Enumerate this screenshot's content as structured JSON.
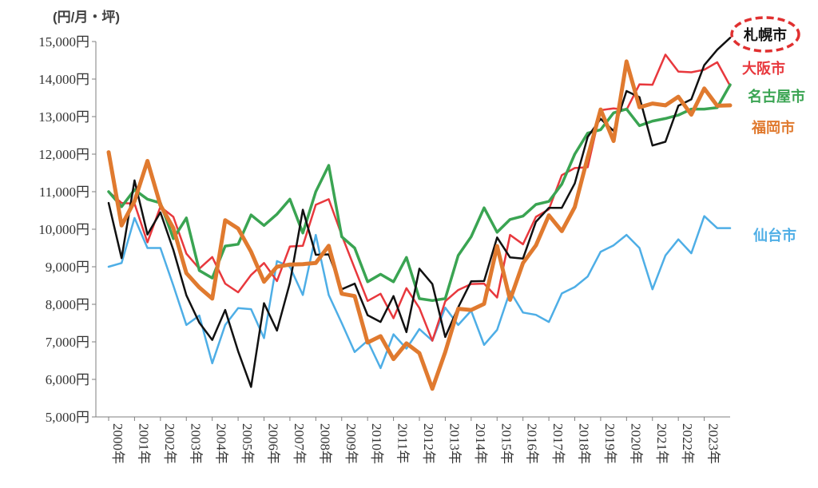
{
  "chart_data": {
    "type": "line",
    "unit_label": "(円/月・坪)",
    "y_ticks": [
      "5,000円",
      "6,000円",
      "7,000円",
      "8,000円",
      "9,000円",
      "10,000円",
      "11,000円",
      "12,000円",
      "13,000円",
      "14,000円",
      "15,000円"
    ],
    "ylim": [
      5000,
      15000
    ],
    "x_range": [
      2000,
      2024
    ],
    "x_ticks": [
      "2000年",
      "2001年",
      "2002年",
      "2003年",
      "2004年",
      "2005年",
      "2006年",
      "2007年",
      "2008年",
      "2009年",
      "2010年",
      "2011年",
      "2012年",
      "2013年",
      "2014年",
      "2015年",
      "2016年",
      "2017年",
      "2018年",
      "2019年",
      "2020年",
      "2021年",
      "2022年",
      "2023年"
    ],
    "grid": false,
    "highlight_series": "札幌市",
    "series": [
      {
        "name": "仙台市",
        "color": "#4eaee6",
        "width": 2.5,
        "label_color": "#4eaee6",
        "x": [
          2000,
          2000.5,
          2001,
          2001.5,
          2002,
          2002.5,
          2003,
          2003.5,
          2004,
          2004.5,
          2005,
          2005.5,
          2006,
          2006.5,
          2007,
          2007.5,
          2008,
          2008.5,
          2009,
          2009.5,
          2010,
          2010.5,
          2011,
          2011.5,
          2012,
          2012.5,
          2013,
          2013.5,
          2014,
          2014.5,
          2015,
          2015.5,
          2016,
          2016.5,
          2017,
          2017.5,
          2018,
          2018.5,
          2019,
          2019.5,
          2020,
          2020.5,
          2021,
          2021.5,
          2022,
          2022.5,
          2023,
          2023.5,
          2024
        ],
        "y": [
          9000,
          9100,
          10300,
          9500,
          9500,
          8500,
          7450,
          7700,
          6430,
          7450,
          7900,
          7870,
          7100,
          9150,
          9000,
          8250,
          9850,
          8250,
          7500,
          6730,
          7030,
          6300,
          7200,
          6820,
          7340,
          7030,
          7910,
          7450,
          7830,
          6920,
          7320,
          8350,
          7780,
          7720,
          7530,
          8290,
          8460,
          8740,
          9400,
          9570,
          9850,
          9500,
          8400,
          9300,
          9730,
          9360,
          10350,
          10030,
          10030
        ]
      },
      {
        "name": "大阪市",
        "color": "#e8383d",
        "width": 2.5,
        "label_color": "#e8383d",
        "x": [
          2000,
          2000.5,
          2001,
          2001.5,
          2002,
          2002.5,
          2003,
          2003.5,
          2004,
          2004.5,
          2005,
          2005.5,
          2006,
          2006.5,
          2007,
          2007.5,
          2008,
          2008.5,
          2009,
          2009.5,
          2010,
          2010.5,
          2011,
          2011.5,
          2012,
          2012.5,
          2013,
          2013.5,
          2014,
          2014.5,
          2015,
          2015.5,
          2016,
          2016.5,
          2017,
          2017.5,
          2018,
          2018.5,
          2019,
          2019.5,
          2020,
          2020.5,
          2021,
          2021.5,
          2022,
          2022.5,
          2023,
          2023.5,
          2024
        ],
        "y": [
          11000,
          10700,
          10680,
          9650,
          10600,
          10330,
          9350,
          8950,
          9260,
          8550,
          8320,
          8780,
          9100,
          8620,
          9540,
          9560,
          10650,
          10800,
          9840,
          8960,
          8090,
          8280,
          7630,
          8430,
          7900,
          7030,
          8080,
          8380,
          8540,
          8550,
          8180,
          9850,
          9600,
          10330,
          10530,
          11440,
          11630,
          11650,
          13170,
          13220,
          13180,
          13860,
          13850,
          14650,
          14200,
          14180,
          14250,
          14450,
          13820
        ]
      },
      {
        "name": "名古屋市",
        "color": "#3aa452",
        "width": 3.5,
        "label_color": "#3aa452",
        "x": [
          2000,
          2000.5,
          2001,
          2001.5,
          2002,
          2002.5,
          2003,
          2003.5,
          2004,
          2004.5,
          2005,
          2005.5,
          2006,
          2006.5,
          2007,
          2007.5,
          2008,
          2008.5,
          2009,
          2009.5,
          2010,
          2010.5,
          2011,
          2011.5,
          2012,
          2012.5,
          2013,
          2013.5,
          2014,
          2014.5,
          2015,
          2015.5,
          2016,
          2016.5,
          2017,
          2017.5,
          2018,
          2018.5,
          2019,
          2019.5,
          2020,
          2020.5,
          2021,
          2021.5,
          2022,
          2022.5,
          2023,
          2023.5,
          2024
        ],
        "y": [
          11000,
          10600,
          11050,
          10800,
          10700,
          9750,
          10300,
          8900,
          8700,
          9550,
          9600,
          10380,
          10100,
          10400,
          10800,
          9900,
          11000,
          11700,
          9800,
          9500,
          8600,
          8800,
          8600,
          9250,
          8150,
          8100,
          8150,
          9300,
          9800,
          10570,
          9920,
          10260,
          10350,
          10660,
          10740,
          11200,
          12000,
          12560,
          12650,
          13100,
          13200,
          12760,
          12880,
          12950,
          13040,
          13200,
          13200,
          13240,
          13850
        ]
      },
      {
        "name": "札幌市",
        "color": "#111111",
        "width": 2.5,
        "label_color": "#111111",
        "x": [
          2000,
          2000.5,
          2001,
          2001.5,
          2002,
          2002.5,
          2003,
          2003.5,
          2004,
          2004.5,
          2005,
          2005.5,
          2006,
          2006.5,
          2007,
          2007.5,
          2008,
          2008.5,
          2009,
          2009.5,
          2010,
          2010.5,
          2011,
          2011.5,
          2012,
          2012.5,
          2013,
          2013.5,
          2014,
          2014.5,
          2015,
          2015.5,
          2016,
          2016.5,
          2017,
          2017.5,
          2018,
          2018.5,
          2019,
          2019.5,
          2020,
          2020.5,
          2021,
          2021.5,
          2022,
          2022.5,
          2023,
          2023.5,
          2024
        ],
        "y": [
          10700,
          9230,
          11300,
          9860,
          10450,
          9450,
          8240,
          7510,
          7050,
          7850,
          6750,
          5800,
          8030,
          7300,
          8570,
          10520,
          9320,
          9330,
          8400,
          8550,
          7710,
          7530,
          8220,
          7260,
          8950,
          8540,
          7130,
          7920,
          8610,
          8620,
          9780,
          9250,
          9220,
          10200,
          10570,
          10570,
          11220,
          12460,
          12940,
          12620,
          13680,
          13520,
          12230,
          12330,
          13290,
          13460,
          14370,
          14780,
          15100
        ]
      },
      {
        "name": "福岡市",
        "color": "#e07a2f",
        "width": 5,
        "label_color": "#e07a2f",
        "x": [
          2000,
          2000.5,
          2001,
          2001.5,
          2002,
          2002.5,
          2003,
          2003.5,
          2004,
          2004.5,
          2005,
          2005.5,
          2006,
          2006.5,
          2007,
          2007.5,
          2008,
          2008.5,
          2009,
          2009.5,
          2010,
          2010.5,
          2011,
          2011.5,
          2012,
          2012.5,
          2013,
          2013.5,
          2014,
          2014.5,
          2015,
          2015.5,
          2016,
          2016.5,
          2017,
          2017.5,
          2018,
          2018.5,
          2019,
          2019.5,
          2020,
          2020.5,
          2021,
          2021.5,
          2022,
          2022.5,
          2023,
          2023.5,
          2024
        ],
        "y": [
          12050,
          10100,
          10750,
          11820,
          10640,
          10030,
          8830,
          8450,
          8150,
          10240,
          10020,
          9400,
          8600,
          9000,
          9060,
          9070,
          9100,
          9560,
          8280,
          8220,
          6980,
          7150,
          6540,
          6960,
          6700,
          5750,
          6730,
          7880,
          7850,
          8010,
          9550,
          8120,
          9100,
          9570,
          10370,
          9950,
          10590,
          11920,
          13190,
          12350,
          14470,
          13250,
          13350,
          13300,
          13530,
          13050,
          13750,
          13290,
          13300
        ]
      }
    ]
  }
}
